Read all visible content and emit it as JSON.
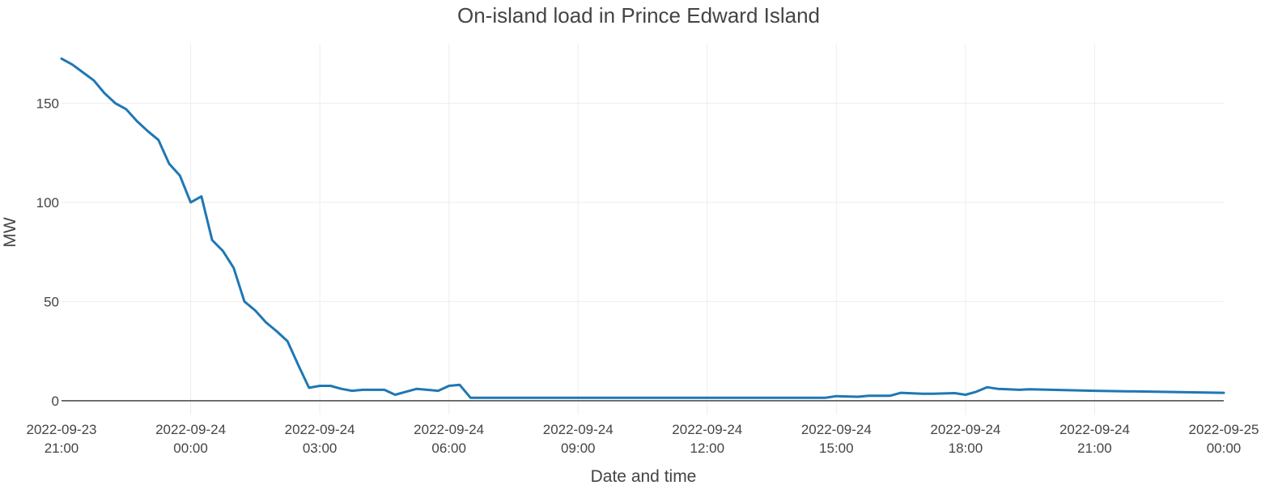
{
  "chart_data": {
    "type": "line",
    "title": "On-island load in Prince Edward Island",
    "xlabel": "Date and time",
    "ylabel": "MW",
    "grid": true,
    "legend": "none",
    "colors": {
      "series": "#1f77b4",
      "grid": "#eeeeee",
      "zero_line": "#444444",
      "text": "#444444"
    },
    "xlim": [
      "2022-09-23 21:00",
      "2022-09-25 00:00"
    ],
    "ylim": [
      -7,
      180
    ],
    "x_ticks": [
      {
        "value": "2022-09-23 21:00",
        "line1": "2022-09-23",
        "line2": "21:00"
      },
      {
        "value": "2022-09-24 00:00",
        "line1": "2022-09-24",
        "line2": "00:00"
      },
      {
        "value": "2022-09-24 03:00",
        "line1": "2022-09-24",
        "line2": "03:00"
      },
      {
        "value": "2022-09-24 06:00",
        "line1": "2022-09-24",
        "line2": "06:00"
      },
      {
        "value": "2022-09-24 09:00",
        "line1": "2022-09-24",
        "line2": "09:00"
      },
      {
        "value": "2022-09-24 12:00",
        "line1": "2022-09-24",
        "line2": "12:00"
      },
      {
        "value": "2022-09-24 15:00",
        "line1": "2022-09-24",
        "line2": "15:00"
      },
      {
        "value": "2022-09-24 18:00",
        "line1": "2022-09-24",
        "line2": "18:00"
      },
      {
        "value": "2022-09-24 21:00",
        "line1": "2022-09-24",
        "line2": "21:00"
      },
      {
        "value": "2022-09-25 00:00",
        "line1": "2022-09-25",
        "line2": "00:00"
      }
    ],
    "y_ticks": [
      {
        "value": 0,
        "label": "0"
      },
      {
        "value": 50,
        "label": "50"
      },
      {
        "value": 100,
        "label": "100"
      },
      {
        "value": 150,
        "label": "150"
      }
    ],
    "series": [
      {
        "x": [
          "2022-09-23 21:00",
          "2022-09-23 21:15",
          "2022-09-23 21:30",
          "2022-09-23 21:45",
          "2022-09-23 22:00",
          "2022-09-23 22:15",
          "2022-09-23 22:30",
          "2022-09-23 22:45",
          "2022-09-23 23:00",
          "2022-09-23 23:15",
          "2022-09-23 23:30",
          "2022-09-23 23:45",
          "2022-09-24 00:00",
          "2022-09-24 00:15",
          "2022-09-24 00:30",
          "2022-09-24 00:45",
          "2022-09-24 01:00",
          "2022-09-24 01:15",
          "2022-09-24 01:30",
          "2022-09-24 01:45",
          "2022-09-24 02:00",
          "2022-09-24 02:15",
          "2022-09-24 02:30",
          "2022-09-24 02:45",
          "2022-09-24 03:00",
          "2022-09-24 03:15",
          "2022-09-24 03:30",
          "2022-09-24 03:45",
          "2022-09-24 04:00",
          "2022-09-24 04:15",
          "2022-09-24 04:30",
          "2022-09-24 04:45",
          "2022-09-24 05:00",
          "2022-09-24 05:15",
          "2022-09-24 05:30",
          "2022-09-24 05:45",
          "2022-09-24 06:00",
          "2022-09-24 06:15",
          "2022-09-24 06:30",
          "2022-09-24 14:45",
          "2022-09-24 15:00",
          "2022-09-24 15:30",
          "2022-09-24 15:45",
          "2022-09-24 16:15",
          "2022-09-24 16:30",
          "2022-09-24 17:00",
          "2022-09-24 17:15",
          "2022-09-24 17:45",
          "2022-09-24 18:00",
          "2022-09-24 18:15",
          "2022-09-24 18:30",
          "2022-09-24 18:45",
          "2022-09-24 19:00",
          "2022-09-24 19:15",
          "2022-09-24 19:30",
          "2022-09-24 21:00",
          "2022-09-25 00:00"
        ],
        "values": [
          172.5,
          169.5,
          165.5,
          161.5,
          155,
          150,
          147,
          141,
          136,
          131.5,
          119.5,
          113.5,
          100,
          103,
          81,
          75.5,
          67,
          50,
          45.5,
          39.5,
          35,
          30,
          18,
          6.5,
          7.5,
          7.5,
          6,
          5,
          5.5,
          5.5,
          5.5,
          3,
          4.5,
          6,
          5.5,
          5,
          7.5,
          8,
          1.5,
          1.5,
          2.3,
          2.0,
          2.5,
          2.5,
          4,
          3.5,
          3.5,
          3.8,
          3,
          4.5,
          6.8,
          6,
          5.8,
          5.5,
          5.8,
          5,
          4
        ]
      }
    ]
  }
}
